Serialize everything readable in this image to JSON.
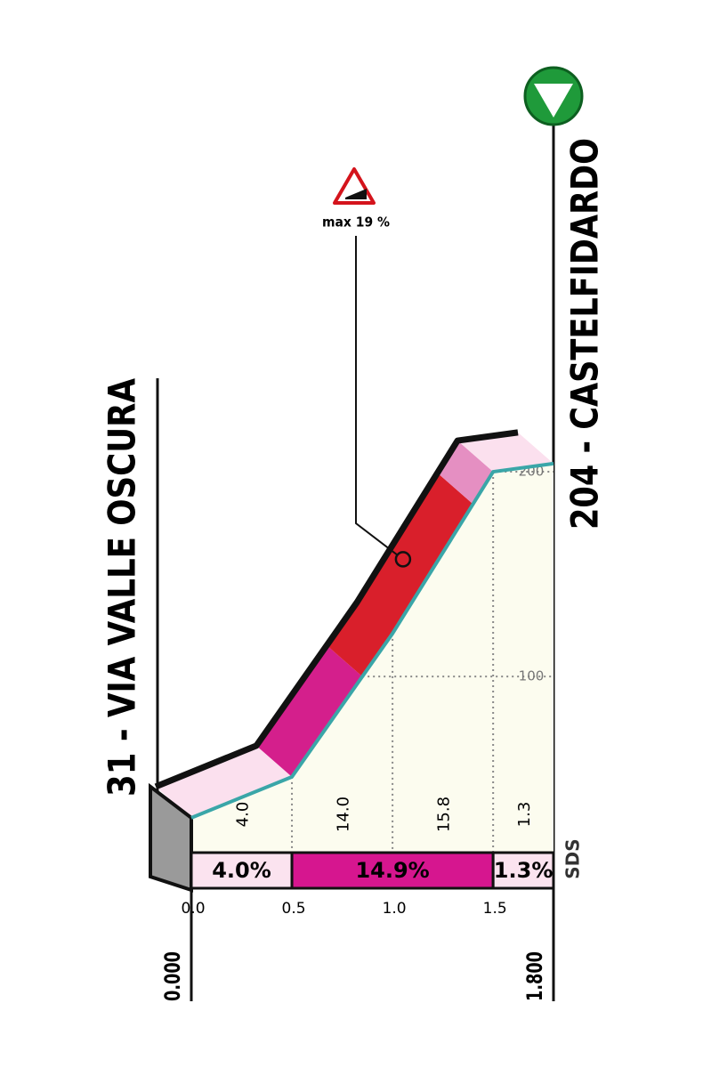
{
  "chart_data": {
    "type": "area",
    "start_label": "31 - VIA VALLE OSCURA",
    "finish_label": "204 - CASTELFIDARDO",
    "start_km_label": "0.000",
    "finish_km_label": "1.800",
    "x": [
      0,
      0.5,
      1.0,
      1.5,
      1.8
    ],
    "values": [
      31,
      51,
      121,
      200,
      204
    ],
    "color": "#3aa6a8",
    "fill_color": "#fcfcef",
    "xlim": [
      0,
      1.8
    ],
    "xticks": [
      {
        "value": 0,
        "label": "0.0"
      },
      0.5,
      {
        "value": 1,
        "label": "1.0"
      },
      1.5
    ],
    "ylim": [
      14,
      260
    ],
    "yticks": [
      100,
      200
    ],
    "grid": true,
    "segment_gradients": {
      "values": [
        4.0,
        14.0,
        15.8,
        1.3
      ],
      "value_labels": [
        "4.0",
        "14.0",
        "15.8",
        "1.3"
      ]
    },
    "gradient_bar": {
      "bins": [
        0,
        0.5,
        1.5,
        1.8
      ],
      "values": [
        4.0,
        14.9,
        1.3
      ],
      "value_labels": [
        "4.0%",
        "14.9%",
        "1.3%"
      ],
      "colors": [
        "#fbe3ef",
        "#d6168f",
        "#fbe3ef"
      ]
    },
    "ribbon": {
      "bins": [
        0,
        0.5,
        0.85,
        1.4,
        1.5,
        1.8
      ],
      "colors": [
        "#fbe0ee",
        "#d41f8c",
        "#d91f2b",
        "#e58fc2",
        "#fbe0ee"
      ]
    },
    "max_gradient": {
      "label": "max 19 %",
      "x": 1.03
    },
    "logo": "SDS"
  }
}
